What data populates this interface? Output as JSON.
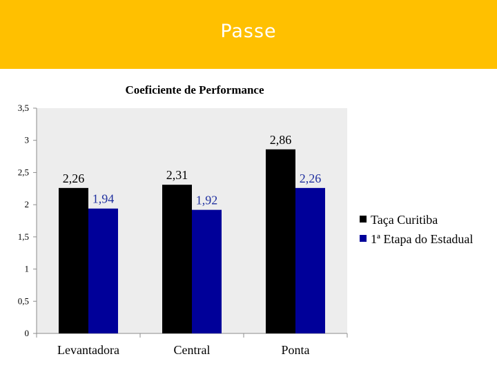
{
  "slide": {
    "title": "Passe",
    "banner_color": "#FFC000"
  },
  "chart_data": {
    "type": "bar",
    "title": "Coeficiente de Performance",
    "categories": [
      "Levantadora",
      "Central",
      "Ponta"
    ],
    "series": [
      {
        "name": "Taça Curitiba",
        "values": [
          2.26,
          2.31,
          2.86
        ],
        "labels": [
          "2,26",
          "2,31",
          "2,86"
        ],
        "color": "#000000",
        "label_color": "#000000"
      },
      {
        "name": "1ª Etapa do Estadual",
        "values": [
          1.94,
          1.92,
          2.26
        ],
        "labels": [
          "1,94",
          "1,92",
          "2,26"
        ],
        "color": "#000099",
        "label_color": "#1F2F9F"
      }
    ],
    "ylim": [
      0,
      3.5
    ],
    "yticks": [
      {
        "value": 0,
        "label": "0"
      },
      {
        "value": 0.5,
        "label": "0,5"
      },
      {
        "value": 1,
        "label": "1"
      },
      {
        "value": 1.5,
        "label": "1,5"
      },
      {
        "value": 2,
        "label": "2"
      },
      {
        "value": 2.5,
        "label": "2,5"
      },
      {
        "value": 3,
        "label": "3"
      },
      {
        "value": 3.5,
        "label": "3,5"
      }
    ],
    "plot_background": "#EDEDED",
    "legend_position": "right",
    "grid": false
  }
}
